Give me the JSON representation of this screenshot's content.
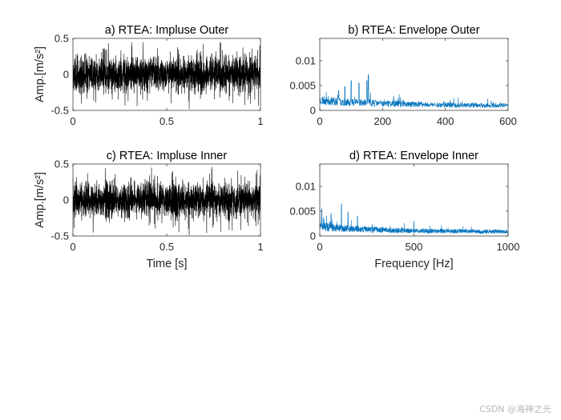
{
  "watermark": "CSDN @海神之光",
  "chart_data": [
    {
      "type": "line",
      "title": "a) RTEA: Impluse Outer",
      "xlabel": "",
      "ylabel": "Amp.[m/s²]",
      "xlim": [
        0,
        1
      ],
      "ylim": [
        -0.5,
        0.5
      ],
      "xticks": [
        0,
        0.5,
        1
      ],
      "yticks": [
        -0.5,
        0,
        0.5
      ],
      "xticklabels": [
        "0",
        "0.5",
        "1"
      ],
      "yticklabels": [
        "-0.5",
        "0",
        "0.5"
      ],
      "color": "#000000",
      "grid": false,
      "signal": {
        "kind": "noise",
        "n": 2400,
        "seed": 11,
        "amp": 0.12,
        "peak": 0.45,
        "spikes": [
          [
            0.62,
            -0.48
          ]
        ]
      }
    },
    {
      "type": "line",
      "title": "b) RTEA: Envelope Outer",
      "xlabel": "",
      "ylabel": "",
      "xlim": [
        0,
        600
      ],
      "ylim": [
        0,
        0.0145
      ],
      "xticks": [
        0,
        200,
        400,
        600
      ],
      "yticks": [
        0,
        0.005,
        0.01
      ],
      "xticklabels": [
        "0",
        "200",
        "400",
        "600"
      ],
      "yticklabels": [
        "0",
        "0.005",
        "0.01"
      ],
      "color": "#0072BD",
      "grid": false,
      "signal": {
        "kind": "spectrum",
        "n": 900,
        "seed": 23,
        "base": 0.0022,
        "floor": 0.0009,
        "decay": 250,
        "peaks": [
          [
            155,
            0.0072
          ],
          [
            150,
            0.006
          ],
          [
            100,
            0.006
          ],
          [
            125,
            0.0055
          ],
          [
            80,
            0.0048
          ],
          [
            60,
            0.004
          ]
        ]
      }
    },
    {
      "type": "line",
      "title": "c) RTEA: Impluse Inner",
      "xlabel": "Time [s]",
      "ylabel": "Amp.[m/s²]",
      "xlim": [
        0,
        1
      ],
      "ylim": [
        -0.5,
        0.5
      ],
      "xticks": [
        0,
        0.5,
        1
      ],
      "yticks": [
        -0.5,
        0,
        0.5
      ],
      "xticklabels": [
        "0",
        "0.5",
        "1"
      ],
      "yticklabels": [
        "-0.5",
        "0",
        "0.5"
      ],
      "color": "#000000",
      "grid": false,
      "signal": {
        "kind": "noise",
        "n": 2400,
        "seed": 37,
        "amp": 0.12,
        "peak": 0.46,
        "spikes": [
          [
            0.62,
            -0.49
          ],
          [
            0.74,
            0.46
          ]
        ]
      }
    },
    {
      "type": "line",
      "title": "d) RTEA: Envelope Inner",
      "xlabel": "Frequency [Hz]",
      "ylabel": "",
      "xlim": [
        0,
        1000
      ],
      "ylim": [
        0,
        0.0145
      ],
      "xticks": [
        0,
        500,
        1000
      ],
      "yticks": [
        0,
        0.005,
        0.01
      ],
      "xticklabels": [
        "0",
        "500",
        "1000"
      ],
      "yticklabels": [
        "0",
        "0.005",
        "0.01"
      ],
      "color": "#0072BD",
      "grid": false,
      "signal": {
        "kind": "spectrum",
        "n": 1400,
        "seed": 51,
        "base": 0.002,
        "floor": 0.0009,
        "decay": 300,
        "peaks": [
          [
            115,
            0.0065
          ],
          [
            10,
            0.0055
          ],
          [
            150,
            0.0048
          ],
          [
            60,
            0.0045
          ],
          [
            200,
            0.004
          ],
          [
            500,
            0.003
          ]
        ]
      }
    }
  ]
}
